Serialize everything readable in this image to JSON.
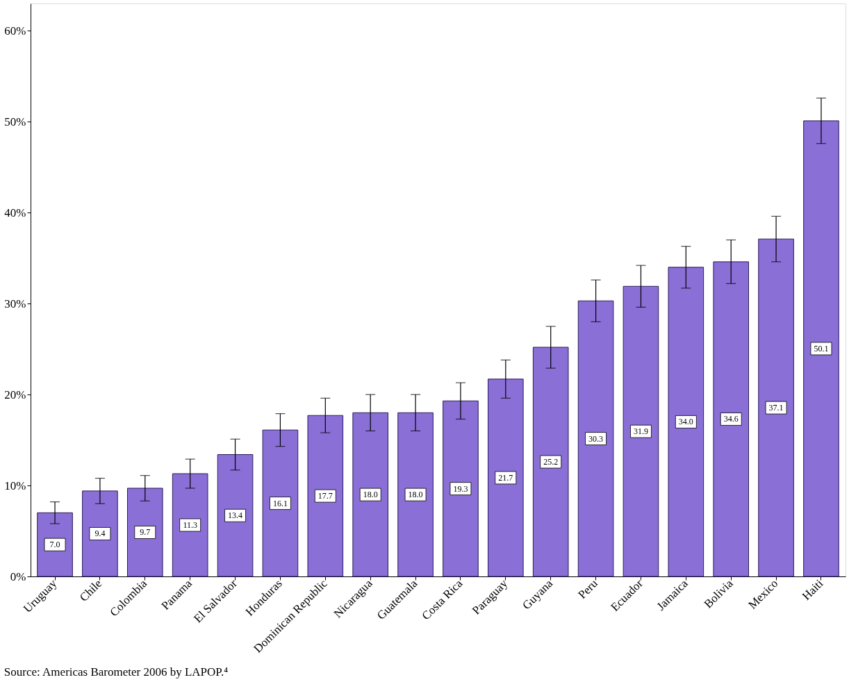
{
  "chart_data": {
    "type": "bar",
    "categories": [
      "Uruguay",
      "Chile",
      "Colombia",
      "Panama",
      "El Salvador",
      "Honduras",
      "Dominican Republic",
      "Nicaragua",
      "Guatemala",
      "Costa Rica",
      "Paraguay",
      "Guyana",
      "Peru",
      "Ecuador",
      "Jamaica",
      "Bolivia",
      "Mexico",
      "Haiti"
    ],
    "values": [
      7.0,
      9.4,
      9.7,
      11.3,
      13.4,
      16.1,
      17.7,
      18.0,
      18.0,
      19.3,
      21.7,
      25.2,
      30.3,
      31.9,
      34.0,
      34.6,
      37.1,
      50.1
    ],
    "errors": [
      1.2,
      1.4,
      1.4,
      1.6,
      1.7,
      1.8,
      1.9,
      2.0,
      2.0,
      2.0,
      2.1,
      2.3,
      2.3,
      2.3,
      2.3,
      2.4,
      2.5,
      2.5
    ],
    "color": "#8a6fd6",
    "value_labels": [
      "7.0",
      "9.4",
      "9.7",
      "11.3",
      "13.4",
      "16.1",
      "17.7",
      "18.0",
      "18.0",
      "19.3",
      "21.7",
      "25.2",
      "30.3",
      "31.9",
      "34.0",
      "34.6",
      "37.1",
      "50.1"
    ],
    "ylim": [
      0,
      63
    ],
    "yticks": [
      {
        "value": 0,
        "label": "0%"
      },
      {
        "value": 10,
        "label": "10%"
      },
      {
        "value": 20,
        "label": "20%"
      },
      {
        "value": 30,
        "label": "30%"
      },
      {
        "value": 40,
        "label": "40%"
      },
      {
        "value": 50,
        "label": "50%"
      },
      {
        "value": 60,
        "label": "60%"
      }
    ],
    "grid": false,
    "annotations": [
      "Source: Americas Barometer 2006 by LAPOP.⁴"
    ]
  }
}
